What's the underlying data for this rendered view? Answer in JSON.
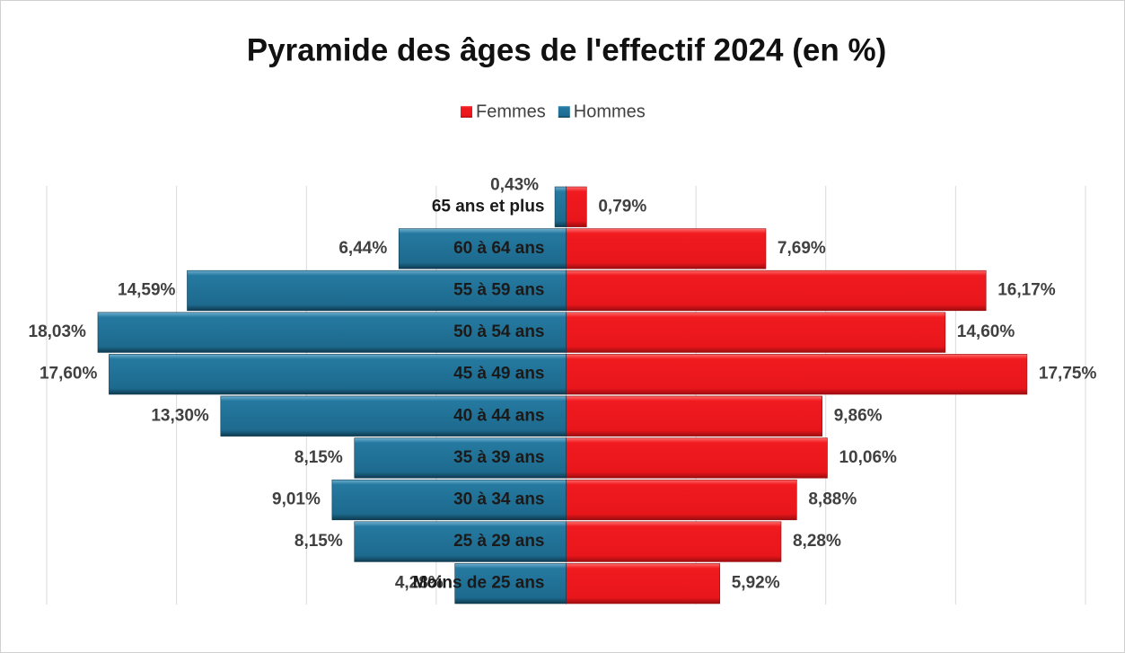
{
  "chart_data": {
    "type": "pyramid",
    "title": "Pyramide des âges de l'effectif 2024 (en %)",
    "categories": [
      "65 ans et plus",
      "60 à 64 ans",
      "55 à 59 ans",
      "50 à 54 ans",
      "45 à 49 ans",
      "40 à 44 ans",
      "35 à 39 ans",
      "30 à 34 ans",
      "25 à 29 ans",
      "Moins de 25 ans"
    ],
    "series": [
      {
        "name": "Femmes",
        "color": "#e8161b",
        "side": "right",
        "values": [
          0.79,
          7.69,
          16.17,
          14.6,
          17.75,
          9.86,
          10.06,
          8.88,
          8.28,
          5.92
        ],
        "value_labels": [
          "0,79%",
          "7,69%",
          "16,17%",
          "14,60%",
          "17,75%",
          "9,86%",
          "10,06%",
          "8,88%",
          "8,28%",
          "5,92%"
        ]
      },
      {
        "name": "Hommes",
        "color": "#1d6a8e",
        "side": "left",
        "values": [
          0.43,
          6.44,
          14.59,
          18.03,
          17.6,
          13.3,
          8.15,
          9.01,
          8.15,
          4.28
        ],
        "value_labels": [
          "0,43%",
          "6,44%",
          "14,59%",
          "18,03%",
          "17,60%",
          "13,30%",
          "8,15%",
          "9,01%",
          "8,15%",
          "4,28%"
        ]
      }
    ],
    "xlim": [
      -20,
      20
    ],
    "xticks": [
      -20,
      -15,
      -10,
      -5,
      0,
      5,
      10,
      15,
      20
    ],
    "grid": true,
    "legend": "top"
  }
}
